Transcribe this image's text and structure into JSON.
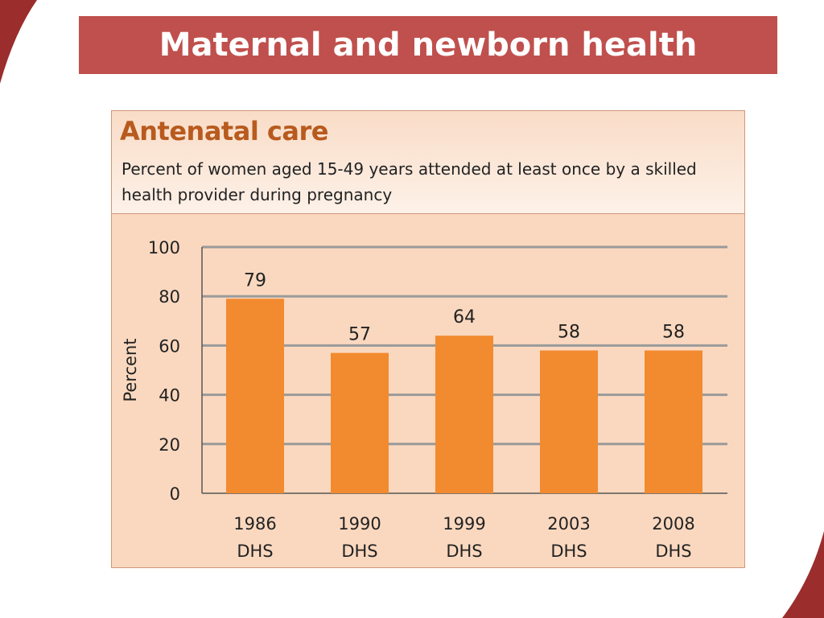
{
  "slide": {
    "title": "Maternal and newborn health"
  },
  "colors": {
    "title_bar": "#c0504d",
    "bar": "#f28a30",
    "panel": "#fad8bf",
    "gridline": "#9a9a9a",
    "chart_title": "#b85a1e"
  },
  "chart_data": {
    "type": "bar",
    "title": "Antenatal care",
    "subtitle": "Percent of women aged 15-49 years attended at least once by a skilled health provider during pregnancy",
    "categories": [
      [
        "1986",
        "DHS"
      ],
      [
        "1990",
        "DHS"
      ],
      [
        "1999",
        "DHS"
      ],
      [
        "2003",
        "DHS"
      ],
      [
        "2008",
        "DHS"
      ]
    ],
    "values": [
      79,
      57,
      64,
      58,
      58
    ],
    "data_labels": [
      "79",
      "57",
      "64",
      "58",
      "58"
    ],
    "ylabel": "Percent",
    "xlabel": "",
    "ylim": [
      0,
      100
    ],
    "yticks": [
      0,
      20,
      40,
      60,
      80,
      100
    ],
    "grid": true,
    "legend": "none"
  }
}
